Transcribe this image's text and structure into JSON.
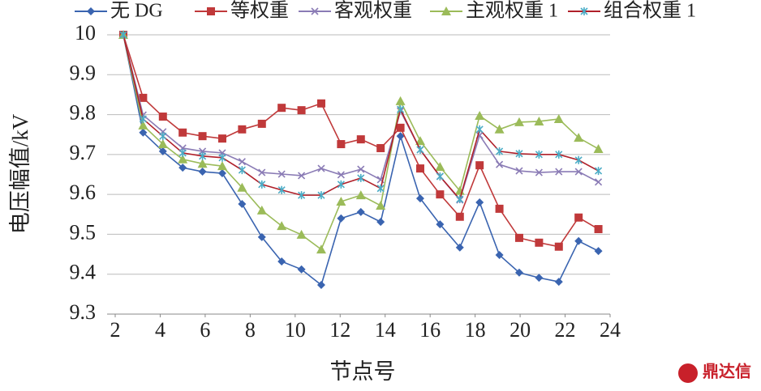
{
  "chart_data": {
    "type": "line",
    "y_label": "电压幅值/kV",
    "x_label": "节点号",
    "watermark": "鼎达信",
    "x": [
      2.36,
      3.24,
      4.12,
      5.0,
      5.88,
      6.76,
      7.64,
      8.52,
      9.4,
      10.28,
      11.16,
      12.04,
      12.92,
      13.8,
      14.68,
      15.56,
      16.44,
      17.32,
      18.2,
      19.08,
      19.96,
      20.84,
      21.72,
      22.6,
      23.48
    ],
    "series": [
      {
        "name": "无 DG",
        "color": "#3a64b0",
        "marker": "diamond",
        "values": [
          10,
          9.755,
          9.708,
          9.667,
          9.657,
          9.653,
          9.576,
          9.493,
          9.432,
          9.412,
          9.373,
          9.54,
          9.556,
          9.531,
          9.746,
          9.59,
          9.525,
          9.467,
          9.58,
          9.448,
          9.404,
          9.391,
          9.381,
          9.483,
          9.458
        ]
      },
      {
        "name": "等权重",
        "color": "#c0393a",
        "marker": "square",
        "values": [
          10,
          9.842,
          9.795,
          9.755,
          9.746,
          9.74,
          9.763,
          9.777,
          9.817,
          9.811,
          9.828,
          9.726,
          9.738,
          9.716,
          9.767,
          9.665,
          9.6,
          9.544,
          9.673,
          9.564,
          9.491,
          9.479,
          9.469,
          9.542,
          9.513
        ]
      },
      {
        "name": "客观权重",
        "color": "#8a7bb5",
        "marker": "x",
        "values": [
          10,
          9.799,
          9.757,
          9.716,
          9.708,
          9.704,
          9.682,
          9.655,
          9.651,
          9.647,
          9.665,
          9.649,
          9.663,
          9.637,
          9.809,
          9.712,
          9.645,
          9.586,
          9.748,
          9.675,
          9.659,
          9.655,
          9.657,
          9.657,
          9.631
        ]
      },
      {
        "name": "主观权重 1",
        "color": "#9bbb59",
        "marker": "triangle",
        "values": [
          10,
          9.773,
          9.726,
          9.688,
          9.677,
          9.671,
          9.617,
          9.56,
          9.521,
          9.499,
          9.462,
          9.582,
          9.598,
          9.572,
          9.834,
          9.734,
          9.669,
          9.609,
          9.797,
          9.763,
          9.781,
          9.783,
          9.789,
          9.742,
          9.714
        ]
      },
      {
        "name": "组合权重 1",
        "color": "#b0202a",
        "marker_color": "#4bacc6",
        "marker": "star",
        "values": [
          10,
          9.789,
          9.746,
          9.704,
          9.696,
          9.692,
          9.661,
          9.625,
          9.611,
          9.598,
          9.598,
          9.625,
          9.641,
          9.615,
          9.813,
          9.712,
          9.645,
          9.588,
          9.763,
          9.708,
          9.702,
          9.7,
          9.7,
          9.686,
          9.659
        ]
      }
    ],
    "xlim": [
      2,
      24
    ],
    "xticks": [
      2,
      4,
      6,
      8,
      10,
      12,
      14,
      16,
      18,
      20,
      22,
      24
    ],
    "ylim": [
      9.3,
      10
    ],
    "yticks": [
      9.3,
      9.4,
      9.5,
      9.6,
      9.7,
      9.8,
      9.9,
      10
    ],
    "grid": true
  }
}
